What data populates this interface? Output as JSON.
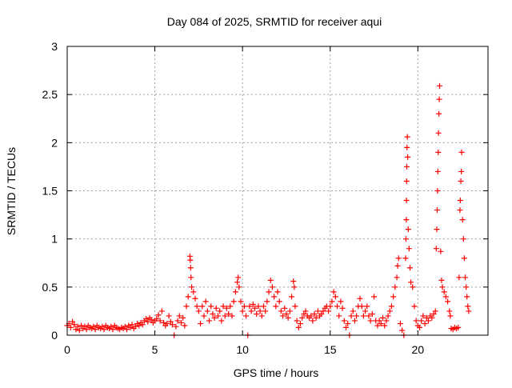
{
  "chart_data": {
    "type": "scatter",
    "title": "Day 084 of 2025, SRMTID for receiver aqui",
    "xlabel": "GPS time / hours",
    "ylabel": "SRMTID / TECUs",
    "xlim": [
      0,
      24
    ],
    "ylim": [
      0,
      3
    ],
    "xticks": [
      "0",
      "5",
      "10",
      "15",
      "20"
    ],
    "yticks": [
      "0",
      "0.5",
      "1",
      "1.5",
      "2",
      "2.5",
      "3"
    ],
    "grid": true,
    "marker": "plus",
    "color": "#ff0000",
    "points": [
      [
        0.0,
        0.1
      ],
      [
        0.1,
        0.12
      ],
      [
        0.2,
        0.08
      ],
      [
        0.3,
        0.14
      ],
      [
        0.4,
        0.11
      ],
      [
        0.5,
        0.06
      ],
      [
        0.6,
        0.09
      ],
      [
        0.7,
        0.05
      ],
      [
        0.8,
        0.1
      ],
      [
        0.9,
        0.07
      ],
      [
        1.0,
        0.09
      ],
      [
        1.1,
        0.06
      ],
      [
        1.2,
        0.1
      ],
      [
        1.3,
        0.08
      ],
      [
        1.4,
        0.07
      ],
      [
        1.5,
        0.09
      ],
      [
        1.6,
        0.06
      ],
      [
        1.7,
        0.1
      ],
      [
        1.8,
        0.08
      ],
      [
        1.9,
        0.07
      ],
      [
        2.0,
        0.09
      ],
      [
        2.1,
        0.06
      ],
      [
        2.2,
        0.1
      ],
      [
        2.3,
        0.08
      ],
      [
        2.4,
        0.07
      ],
      [
        2.5,
        0.09
      ],
      [
        2.6,
        0.06
      ],
      [
        2.7,
        0.1
      ],
      [
        2.8,
        0.08
      ],
      [
        2.9,
        0.07
      ],
      [
        3.0,
        0.06
      ],
      [
        3.1,
        0.08
      ],
      [
        3.2,
        0.07
      ],
      [
        3.3,
        0.09
      ],
      [
        3.4,
        0.06
      ],
      [
        3.5,
        0.1
      ],
      [
        3.6,
        0.08
      ],
      [
        3.7,
        0.11
      ],
      [
        3.8,
        0.07
      ],
      [
        3.9,
        0.09
      ],
      [
        4.0,
        0.12
      ],
      [
        4.1,
        0.1
      ],
      [
        4.2,
        0.13
      ],
      [
        4.3,
        0.11
      ],
      [
        4.4,
        0.15
      ],
      [
        4.5,
        0.17
      ],
      [
        4.6,
        0.14
      ],
      [
        4.7,
        0.18
      ],
      [
        4.8,
        0.16
      ],
      [
        4.9,
        0.13
      ],
      [
        5.0,
        0.15
      ],
      [
        5.1,
        0.17
      ],
      [
        5.2,
        0.21
      ],
      [
        5.3,
        0.15
      ],
      [
        5.4,
        0.25
      ],
      [
        5.5,
        0.13
      ],
      [
        5.6,
        0.1
      ],
      [
        5.7,
        0.12
      ],
      [
        5.8,
        0.2
      ],
      [
        5.9,
        0.14
      ],
      [
        6.0,
        0.11
      ],
      [
        6.1,
        0.0
      ],
      [
        6.2,
        0.09
      ],
      [
        6.3,
        0.15
      ],
      [
        6.4,
        0.2
      ],
      [
        6.5,
        0.13
      ],
      [
        6.6,
        0.18
      ],
      [
        6.7,
        0.1
      ],
      [
        6.8,
        0.3
      ],
      [
        6.9,
        0.4
      ],
      [
        7.0,
        0.82
      ],
      [
        7.02,
        0.78
      ],
      [
        7.04,
        0.7
      ],
      [
        7.06,
        0.6
      ],
      [
        7.1,
        0.5
      ],
      [
        7.2,
        0.45
      ],
      [
        7.3,
        0.38
      ],
      [
        7.4,
        0.3
      ],
      [
        7.5,
        0.25
      ],
      [
        7.6,
        0.12
      ],
      [
        7.7,
        0.3
      ],
      [
        7.8,
        0.2
      ],
      [
        7.9,
        0.35
      ],
      [
        8.0,
        0.25
      ],
      [
        8.1,
        0.15
      ],
      [
        8.2,
        0.3
      ],
      [
        8.3,
        0.22
      ],
      [
        8.4,
        0.18
      ],
      [
        8.5,
        0.28
      ],
      [
        8.6,
        0.2
      ],
      [
        8.7,
        0.25
      ],
      [
        8.8,
        0.15
      ],
      [
        8.9,
        0.3
      ],
      [
        9.0,
        0.2
      ],
      [
        9.1,
        0.28
      ],
      [
        9.2,
        0.22
      ],
      [
        9.3,
        0.3
      ],
      [
        9.4,
        0.2
      ],
      [
        9.5,
        0.35
      ],
      [
        9.6,
        0.45
      ],
      [
        9.7,
        0.55
      ],
      [
        9.75,
        0.6
      ],
      [
        9.8,
        0.5
      ],
      [
        9.9,
        0.35
      ],
      [
        10.0,
        0.25
      ],
      [
        10.1,
        0.3
      ],
      [
        10.2,
        0.2
      ],
      [
        10.3,
        0.0
      ],
      [
        10.4,
        0.3
      ],
      [
        10.5,
        0.25
      ],
      [
        10.6,
        0.32
      ],
      [
        10.7,
        0.28
      ],
      [
        10.8,
        0.22
      ],
      [
        10.9,
        0.3
      ],
      [
        11.0,
        0.25
      ],
      [
        11.1,
        0.2
      ],
      [
        11.2,
        0.3
      ],
      [
        11.3,
        0.25
      ],
      [
        11.4,
        0.35
      ],
      [
        11.5,
        0.45
      ],
      [
        11.6,
        0.57
      ],
      [
        11.7,
        0.5
      ],
      [
        11.8,
        0.4
      ],
      [
        11.9,
        0.3
      ],
      [
        12.0,
        0.45
      ],
      [
        12.1,
        0.35
      ],
      [
        12.2,
        0.25
      ],
      [
        12.3,
        0.2
      ],
      [
        12.4,
        0.28
      ],
      [
        12.5,
        0.22
      ],
      [
        12.6,
        0.18
      ],
      [
        12.7,
        0.25
      ],
      [
        12.8,
        0.4
      ],
      [
        12.9,
        0.56
      ],
      [
        12.95,
        0.5
      ],
      [
        13.0,
        0.3
      ],
      [
        13.1,
        0.15
      ],
      [
        13.2,
        0.08
      ],
      [
        13.3,
        0.12
      ],
      [
        13.4,
        0.18
      ],
      [
        13.5,
        0.22
      ],
      [
        13.6,
        0.25
      ],
      [
        13.7,
        0.2
      ],
      [
        13.8,
        0.18
      ],
      [
        13.9,
        0.2
      ],
      [
        14.0,
        0.15
      ],
      [
        14.1,
        0.22
      ],
      [
        14.2,
        0.18
      ],
      [
        14.3,
        0.25
      ],
      [
        14.4,
        0.2
      ],
      [
        14.5,
        0.22
      ],
      [
        14.6,
        0.25
      ],
      [
        14.7,
        0.28
      ],
      [
        14.8,
        0.3
      ],
      [
        14.9,
        0.25
      ],
      [
        15.0,
        0.3
      ],
      [
        15.1,
        0.35
      ],
      [
        15.2,
        0.45
      ],
      [
        15.3,
        0.4
      ],
      [
        15.4,
        0.3
      ],
      [
        15.5,
        0.2
      ],
      [
        15.6,
        0.35
      ],
      [
        15.7,
        0.28
      ],
      [
        15.8,
        0.15
      ],
      [
        15.9,
        0.08
      ],
      [
        16.0,
        0.12
      ],
      [
        16.1,
        0.0
      ],
      [
        16.2,
        0.2
      ],
      [
        16.3,
        0.25
      ],
      [
        16.4,
        0.15
      ],
      [
        16.5,
        0.2
      ],
      [
        16.6,
        0.3
      ],
      [
        16.7,
        0.38
      ],
      [
        16.8,
        0.3
      ],
      [
        16.9,
        0.2
      ],
      [
        17.0,
        0.25
      ],
      [
        17.1,
        0.3
      ],
      [
        17.2,
        0.2
      ],
      [
        17.3,
        0.15
      ],
      [
        17.4,
        0.22
      ],
      [
        17.5,
        0.4
      ],
      [
        17.6,
        0.15
      ],
      [
        17.7,
        0.1
      ],
      [
        17.8,
        0.15
      ],
      [
        17.9,
        0.12
      ],
      [
        18.0,
        0.18
      ],
      [
        18.1,
        0.1
      ],
      [
        18.2,
        0.15
      ],
      [
        18.3,
        0.2
      ],
      [
        18.4,
        0.25
      ],
      [
        18.5,
        0.3
      ],
      [
        18.6,
        0.4
      ],
      [
        18.7,
        0.5
      ],
      [
        18.8,
        0.6
      ],
      [
        18.85,
        0.72
      ],
      [
        18.9,
        0.8
      ],
      [
        19.0,
        0.12
      ],
      [
        19.1,
        0.05
      ],
      [
        19.2,
        0.0
      ],
      [
        19.3,
        0.8
      ],
      [
        19.32,
        1.0
      ],
      [
        19.34,
        1.2
      ],
      [
        19.35,
        1.4
      ],
      [
        19.36,
        1.6
      ],
      [
        19.37,
        1.75
      ],
      [
        19.38,
        1.95
      ],
      [
        19.4,
        2.06
      ],
      [
        19.42,
        1.85
      ],
      [
        19.45,
        1.1
      ],
      [
        19.5,
        0.9
      ],
      [
        19.55,
        0.7
      ],
      [
        19.6,
        0.55
      ],
      [
        19.7,
        0.5
      ],
      [
        19.8,
        0.3
      ],
      [
        19.9,
        0.15
      ],
      [
        20.0,
        0.1
      ],
      [
        20.1,
        0.08
      ],
      [
        20.2,
        0.15
      ],
      [
        20.3,
        0.2
      ],
      [
        20.4,
        0.12
      ],
      [
        20.5,
        0.18
      ],
      [
        20.6,
        0.15
      ],
      [
        20.7,
        0.2
      ],
      [
        20.8,
        0.18
      ],
      [
        20.9,
        0.22
      ],
      [
        21.0,
        0.25
      ],
      [
        21.05,
        0.9
      ],
      [
        21.08,
        1.1
      ],
      [
        21.1,
        1.3
      ],
      [
        21.12,
        1.5
      ],
      [
        21.14,
        1.7
      ],
      [
        21.16,
        1.9
      ],
      [
        21.18,
        2.1
      ],
      [
        21.2,
        2.3
      ],
      [
        21.22,
        2.45
      ],
      [
        21.24,
        2.59
      ],
      [
        21.3,
        0.87
      ],
      [
        21.35,
        0.57
      ],
      [
        21.4,
        0.5
      ],
      [
        21.5,
        0.45
      ],
      [
        21.6,
        0.4
      ],
      [
        21.7,
        0.35
      ],
      [
        21.8,
        0.25
      ],
      [
        21.85,
        0.2
      ],
      [
        21.9,
        0.07
      ],
      [
        22.0,
        0.06
      ],
      [
        22.1,
        0.08
      ],
      [
        22.2,
        0.07
      ],
      [
        22.3,
        0.08
      ],
      [
        22.35,
        0.6
      ],
      [
        22.4,
        1.3
      ],
      [
        22.42,
        1.4
      ],
      [
        22.45,
        1.6
      ],
      [
        22.48,
        1.7
      ],
      [
        22.5,
        1.9
      ],
      [
        22.55,
        1.2
      ],
      [
        22.6,
        1.0
      ],
      [
        22.65,
        0.8
      ],
      [
        22.7,
        0.6
      ],
      [
        22.75,
        0.5
      ],
      [
        22.8,
        0.4
      ],
      [
        22.85,
        0.3
      ],
      [
        22.9,
        0.25
      ]
    ]
  }
}
